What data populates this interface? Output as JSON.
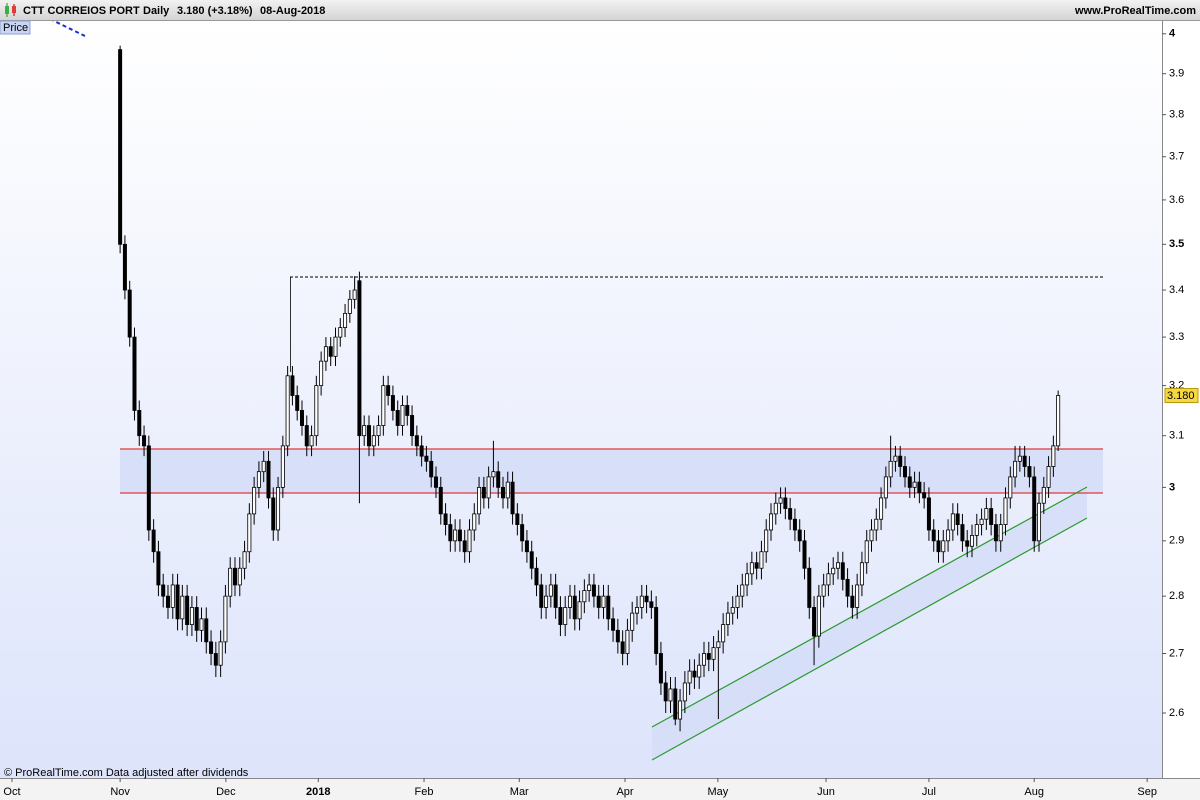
{
  "header": {
    "symbol": "CTT CORREIOS PORT",
    "period": "Daily",
    "last": "3.180 (+3.18%)",
    "date": "08-Aug-2018",
    "site": "www.ProRealTime.com"
  },
  "chart_data": {
    "type": "candlestick",
    "y_label": "Price",
    "log_scale": true,
    "up_color": "#ffffff",
    "down_color": "#000000",
    "wick_color": "#000000",
    "last_price_label": "3.180",
    "ylim": [
      2.495,
      4.03
    ],
    "yticks": [
      2.6,
      2.7,
      2.8,
      2.9,
      3,
      3.1,
      3.2,
      3.3,
      3.4,
      3.5,
      3.6,
      3.7,
      3.8,
      3.9,
      4
    ],
    "xlim": [
      -25.1,
      217.7
    ],
    "xticks": [
      {
        "value": -22.6,
        "label": "Oct"
      },
      {
        "value": 0,
        "label": "Nov"
      },
      {
        "value": 22.1,
        "label": "Dec"
      },
      {
        "value": 41.4,
        "label": "2018"
      },
      {
        "value": 63.5,
        "label": "Feb"
      },
      {
        "value": 83.4,
        "label": "Mar"
      },
      {
        "value": 105.5,
        "label": "Apr"
      },
      {
        "value": 124.9,
        "label": "May"
      },
      {
        "value": 147.5,
        "label": "Jun"
      },
      {
        "value": 169.0,
        "label": "Jul"
      },
      {
        "value": 191.0,
        "label": "Aug"
      },
      {
        "value": 214.6,
        "label": "Sep"
      }
    ],
    "open": [
      3.96,
      3.5,
      3.4,
      3.3,
      3.15,
      3.1,
      3.08,
      2.92,
      2.88,
      2.82,
      2.8,
      2.78,
      2.82,
      2.76,
      2.8,
      2.75,
      2.78,
      2.74,
      2.76,
      2.72,
      2.7,
      2.68,
      2.72,
      2.8,
      2.85,
      2.82,
      2.85,
      2.88,
      2.95,
      3.0,
      3.03,
      3.05,
      2.98,
      2.92,
      3.0,
      3.08,
      3.22,
      3.18,
      3.15,
      3.12,
      3.08,
      3.1,
      3.2,
      3.25,
      3.28,
      3.26,
      3.3,
      3.32,
      3.35,
      3.38,
      3.42,
      3.1,
      3.12,
      3.08,
      3.1,
      3.12,
      3.2,
      3.18,
      3.15,
      3.12,
      3.16,
      3.14,
      3.1,
      3.08,
      3.06,
      3.05,
      3.02,
      3.0,
      2.95,
      2.93,
      2.9,
      2.92,
      2.9,
      2.88,
      2.92,
      2.95,
      3.0,
      2.98,
      3.02,
      3.03,
      3.0,
      2.98,
      3.01,
      2.95,
      2.93,
      2.9,
      2.88,
      2.85,
      2.82,
      2.78,
      2.8,
      2.82,
      2.78,
      2.75,
      2.78,
      2.8,
      2.76,
      2.79,
      2.81,
      2.82,
      2.8,
      2.78,
      2.8,
      2.76,
      2.74,
      2.72,
      2.7,
      2.74,
      2.77,
      2.78,
      2.8,
      2.79,
      2.78,
      2.7,
      2.65,
      2.62,
      2.64,
      2.59,
      2.62,
      2.65,
      2.67,
      2.66,
      2.68,
      2.7,
      2.69,
      2.71,
      2.72,
      2.75,
      2.77,
      2.78,
      2.8,
      2.82,
      2.84,
      2.86,
      2.85,
      2.88,
      2.92,
      2.95,
      2.97,
      2.98,
      2.96,
      2.94,
      2.92,
      2.9,
      2.85,
      2.78,
      2.73,
      2.8,
      2.82,
      2.84,
      2.85,
      2.86,
      2.83,
      2.8,
      2.78,
      2.82,
      2.86,
      2.9,
      2.92,
      2.94,
      2.98,
      3.02,
      3.05,
      3.06,
      3.04,
      3.02,
      3.0,
      3.01,
      2.99,
      2.98,
      2.92,
      2.9,
      2.88,
      2.9,
      2.92,
      2.95,
      2.93,
      2.9,
      2.89,
      2.91,
      2.93,
      2.94,
      2.96,
      2.93,
      2.9,
      2.93,
      2.98,
      3.02,
      3.05,
      3.06,
      3.04,
      3.02,
      2.9,
      2.97,
      3.0,
      3.04,
      3.08
    ],
    "high": [
      3.97,
      3.52,
      3.42,
      3.32,
      3.17,
      3.12,
      3.1,
      2.94,
      2.9,
      2.84,
      2.82,
      2.84,
      2.84,
      2.82,
      2.82,
      2.8,
      2.8,
      2.78,
      2.78,
      2.74,
      2.72,
      2.74,
      2.82,
      2.87,
      2.87,
      2.87,
      2.9,
      2.97,
      3.02,
      3.05,
      3.07,
      3.07,
      3.0,
      3.02,
      3.1,
      3.24,
      3.24,
      3.2,
      3.17,
      3.14,
      3.12,
      3.22,
      3.27,
      3.3,
      3.3,
      3.32,
      3.34,
      3.37,
      3.4,
      3.43,
      3.44,
      3.14,
      3.14,
      3.12,
      3.14,
      3.22,
      3.22,
      3.2,
      3.17,
      3.18,
      3.18,
      3.16,
      3.12,
      3.1,
      3.08,
      3.07,
      3.04,
      3.02,
      2.97,
      2.95,
      2.94,
      2.94,
      2.92,
      2.94,
      2.97,
      3.02,
      3.02,
      3.04,
      3.09,
      3.05,
      3.02,
      3.03,
      3.03,
      2.97,
      2.95,
      2.92,
      2.9,
      2.87,
      2.84,
      2.82,
      2.84,
      2.84,
      2.8,
      2.8,
      2.82,
      2.82,
      2.81,
      2.83,
      2.84,
      2.84,
      2.82,
      2.82,
      2.82,
      2.78,
      2.76,
      2.74,
      2.76,
      2.79,
      2.8,
      2.82,
      2.82,
      2.81,
      2.8,
      2.72,
      2.67,
      2.66,
      2.66,
      2.64,
      2.67,
      2.69,
      2.69,
      2.7,
      2.72,
      2.72,
      2.73,
      2.74,
      2.77,
      2.79,
      2.8,
      2.82,
      2.84,
      2.86,
      2.88,
      2.88,
      2.9,
      2.94,
      2.97,
      2.99,
      3.0,
      3.0,
      2.98,
      2.96,
      2.94,
      2.92,
      2.87,
      2.8,
      2.82,
      2.84,
      2.86,
      2.87,
      2.88,
      2.88,
      2.85,
      2.82,
      2.84,
      2.88,
      2.92,
      2.94,
      2.96,
      3.0,
      3.04,
      3.1,
      3.08,
      3.08,
      3.06,
      3.04,
      3.03,
      3.03,
      3.01,
      3.0,
      2.94,
      2.92,
      2.92,
      2.94,
      2.97,
      2.97,
      2.95,
      2.92,
      2.93,
      2.95,
      2.96,
      2.98,
      2.98,
      2.95,
      2.95,
      3.0,
      3.04,
      3.08,
      3.08,
      3.08,
      3.06,
      3.04,
      2.99,
      3.02,
      3.06,
      3.1,
      3.19
    ],
    "low": [
      3.48,
      3.38,
      3.28,
      3.13,
      3.08,
      3.06,
      2.9,
      2.86,
      2.8,
      2.78,
      2.76,
      2.76,
      2.74,
      2.74,
      2.73,
      2.73,
      2.72,
      2.72,
      2.7,
      2.68,
      2.66,
      2.66,
      2.7,
      2.78,
      2.8,
      2.8,
      2.83,
      2.86,
      2.93,
      2.98,
      3.01,
      2.96,
      2.9,
      2.9,
      2.98,
      3.06,
      3.16,
      3.13,
      3.1,
      3.06,
      3.06,
      3.08,
      3.18,
      3.23,
      3.24,
      3.24,
      3.28,
      3.3,
      3.33,
      3.36,
      2.97,
      3.08,
      3.06,
      3.06,
      3.08,
      3.1,
      3.16,
      3.13,
      3.1,
      3.1,
      3.12,
      3.08,
      3.06,
      3.04,
      3.03,
      3.0,
      2.98,
      2.93,
      2.91,
      2.88,
      2.88,
      2.88,
      2.86,
      2.86,
      2.9,
      2.93,
      2.96,
      2.96,
      3.0,
      2.98,
      2.96,
      2.96,
      2.93,
      2.91,
      2.88,
      2.86,
      2.83,
      2.8,
      2.76,
      2.76,
      2.78,
      2.76,
      2.73,
      2.73,
      2.76,
      2.74,
      2.74,
      2.77,
      2.79,
      2.78,
      2.76,
      2.76,
      2.74,
      2.72,
      2.7,
      2.68,
      2.68,
      2.72,
      2.75,
      2.76,
      2.77,
      2.76,
      2.68,
      2.63,
      2.6,
      2.6,
      2.58,
      2.57,
      2.6,
      2.63,
      2.64,
      2.64,
      2.66,
      2.67,
      2.67,
      2.59,
      2.7,
      2.73,
      2.75,
      2.76,
      2.78,
      2.8,
      2.82,
      2.83,
      2.83,
      2.86,
      2.9,
      2.93,
      2.95,
      2.94,
      2.92,
      2.9,
      2.88,
      2.83,
      2.76,
      2.68,
      2.71,
      2.78,
      2.8,
      2.82,
      2.83,
      2.81,
      2.78,
      2.76,
      2.76,
      2.8,
      2.84,
      2.88,
      2.9,
      2.92,
      2.96,
      3.0,
      3.03,
      3.02,
      3.0,
      2.98,
      2.98,
      2.97,
      2.96,
      2.9,
      2.88,
      2.86,
      2.86,
      2.88,
      2.9,
      2.91,
      2.88,
      2.87,
      2.87,
      2.89,
      2.91,
      2.92,
      2.91,
      2.88,
      2.88,
      2.91,
      2.96,
      3.0,
      3.03,
      3.02,
      3.0,
      2.88,
      2.88,
      2.95,
      2.98,
      3.02,
      3.07
    ],
    "close": [
      3.5,
      3.4,
      3.3,
      3.15,
      3.1,
      3.08,
      2.92,
      2.88,
      2.82,
      2.8,
      2.78,
      2.82,
      2.76,
      2.8,
      2.75,
      2.78,
      2.74,
      2.76,
      2.72,
      2.7,
      2.68,
      2.72,
      2.8,
      2.85,
      2.82,
      2.85,
      2.88,
      2.95,
      3.0,
      3.03,
      3.05,
      2.98,
      2.92,
      3.0,
      3.08,
      3.22,
      3.18,
      3.15,
      3.12,
      3.08,
      3.1,
      3.2,
      3.25,
      3.28,
      3.26,
      3.3,
      3.32,
      3.35,
      3.38,
      3.4,
      3.1,
      3.12,
      3.08,
      3.1,
      3.12,
      3.2,
      3.18,
      3.15,
      3.12,
      3.16,
      3.14,
      3.1,
      3.08,
      3.06,
      3.05,
      3.02,
      3.0,
      2.95,
      2.93,
      2.9,
      2.92,
      2.9,
      2.88,
      2.92,
      2.95,
      3.0,
      2.98,
      3.02,
      3.03,
      3.0,
      2.98,
      3.01,
      2.95,
      2.93,
      2.9,
      2.88,
      2.85,
      2.82,
      2.78,
      2.8,
      2.82,
      2.78,
      2.75,
      2.78,
      2.8,
      2.76,
      2.79,
      2.81,
      2.82,
      2.8,
      2.78,
      2.8,
      2.76,
      2.74,
      2.72,
      2.7,
      2.74,
      2.77,
      2.78,
      2.8,
      2.79,
      2.78,
      2.7,
      2.65,
      2.62,
      2.64,
      2.59,
      2.62,
      2.65,
      2.67,
      2.66,
      2.68,
      2.7,
      2.69,
      2.71,
      2.72,
      2.75,
      2.77,
      2.78,
      2.8,
      2.82,
      2.84,
      2.86,
      2.85,
      2.88,
      2.92,
      2.95,
      2.97,
      2.98,
      2.96,
      2.94,
      2.92,
      2.9,
      2.85,
      2.78,
      2.73,
      2.8,
      2.82,
      2.84,
      2.85,
      2.86,
      2.83,
      2.8,
      2.78,
      2.82,
      2.86,
      2.9,
      2.92,
      2.94,
      2.98,
      3.02,
      3.05,
      3.06,
      3.04,
      3.02,
      3.0,
      3.01,
      2.99,
      2.98,
      2.92,
      2.9,
      2.88,
      2.9,
      2.92,
      2.95,
      2.93,
      2.9,
      2.89,
      2.91,
      2.93,
      2.94,
      2.96,
      2.93,
      2.9,
      2.93,
      2.98,
      3.02,
      3.05,
      3.06,
      3.04,
      3.02,
      2.9,
      2.97,
      3.0,
      3.04,
      3.08,
      3.18
    ]
  },
  "footer": "© ProRealTime.com  Data adjusted after dividends"
}
